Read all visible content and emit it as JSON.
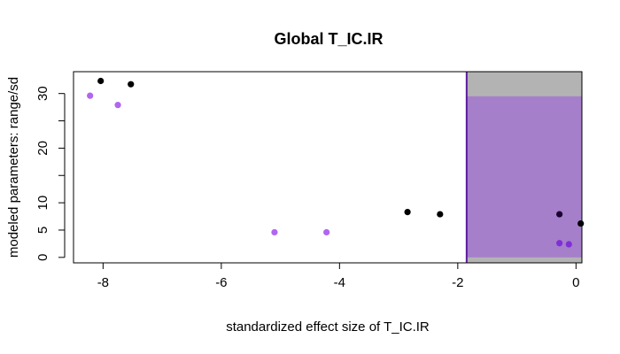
{
  "chart_data": {
    "type": "scatter",
    "title": "Global T_IC.IR",
    "xlabel": "standardized effect size of T_IC.IR",
    "ylabel": "modeled parameters: range/sd",
    "xlim": [
      -8.5,
      0.1
    ],
    "ylim": [
      -1.0,
      34.0
    ],
    "x_ticks": [
      -8,
      -6,
      -4,
      -2,
      0
    ],
    "y_ticks_labeled": [
      0,
      5,
      10,
      20,
      30
    ],
    "y_ticks_minor": [
      15,
      25
    ],
    "grid": false,
    "shaded_regions": [
      {
        "x0": -1.85,
        "x1": 0.1,
        "y0": -1.0,
        "y1": 34.0,
        "color": "#b3b3b3"
      },
      {
        "x0": -1.85,
        "x1": 0.1,
        "y0": 0.0,
        "y1": 29.5,
        "color": "#a57fca"
      }
    ],
    "vline": {
      "x": -1.85,
      "color": "#5b1c9e"
    },
    "points": [
      {
        "x": -8.04,
        "y": 32.3,
        "color": "#000000"
      },
      {
        "x": -7.53,
        "y": 31.7,
        "color": "#000000"
      },
      {
        "x": -8.22,
        "y": 29.6,
        "color": "#b066f0"
      },
      {
        "x": -7.75,
        "y": 27.9,
        "color": "#b066f0"
      },
      {
        "x": -5.1,
        "y": 4.6,
        "color": "#b066f0"
      },
      {
        "x": -4.22,
        "y": 4.6,
        "color": "#b066f0"
      },
      {
        "x": -2.85,
        "y": 8.3,
        "color": "#000000"
      },
      {
        "x": -2.3,
        "y": 7.9,
        "color": "#000000"
      },
      {
        "x": -0.28,
        "y": 7.9,
        "color": "#1a0033"
      },
      {
        "x": 0.08,
        "y": 6.2,
        "color": "#000000"
      },
      {
        "x": -0.28,
        "y": 2.6,
        "color": "#7f2fd6"
      },
      {
        "x": -0.12,
        "y": 2.4,
        "color": "#7f2fd6"
      }
    ]
  }
}
